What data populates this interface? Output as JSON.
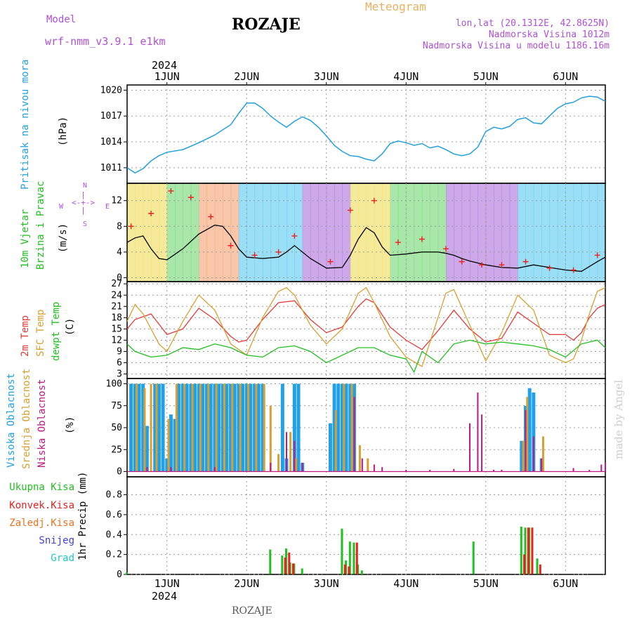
{
  "header": {
    "model_label": "Model",
    "model_name": "wrf-nmm_v3.9.1 e1km",
    "station": "ROZAJE",
    "title": "Meteogram",
    "lonlat": "lon,lat (20.1312E, 42.8625N)",
    "elevation": "Nadmorska Visina 1012m",
    "model_elevation": "Nadmorska Visina u modelu 1186.16m",
    "year": "2024",
    "footer_station": "ROZAJE",
    "watermark": "made by Angel"
  },
  "colors": {
    "pressure": "#22a0e0",
    "wind_speed": "#000000",
    "gust": "#e82020",
    "temp2m": "#e83838",
    "sfc": "#d8a030",
    "dewpt": "#20c020",
    "high_cloud": "#20a0e8",
    "mid_cloud": "#d8a030",
    "low_cloud": "#c01880",
    "ukupna": "#20c020",
    "konvek": "#e82020",
    "zaledj": "#f07020",
    "snijeg": "#4040e0",
    "grad": "#20c8c8"
  },
  "chart_data": [
    {
      "type": "line",
      "panel": "pressure",
      "ylabel": [
        "Pritisak na nivou mora",
        "(hPa)"
      ],
      "ylim": [
        1009.2,
        1020.6
      ],
      "yticks": [
        1011,
        1014,
        1017,
        1020
      ],
      "xticks": [
        "1JUN",
        "2JUN",
        "3JUN",
        "4JUN",
        "5JUN",
        "6JUN"
      ],
      "x": [
        0.5,
        0.6,
        0.7,
        0.8,
        0.9,
        1.0,
        1.2,
        1.4,
        1.6,
        1.8,
        1.9,
        2.0,
        2.1,
        2.2,
        2.3,
        2.4,
        2.5,
        2.6,
        2.7,
        2.8,
        2.9,
        3.0,
        3.1,
        3.2,
        3.3,
        3.4,
        3.5,
        3.6,
        3.7,
        3.8,
        3.9,
        4.0,
        4.1,
        4.2,
        4.3,
        4.4,
        4.5,
        4.6,
        4.7,
        4.8,
        4.9,
        5.0,
        5.1,
        5.2,
        5.3,
        5.4,
        5.5,
        5.6,
        5.7,
        5.8,
        5.9,
        6.0,
        6.1,
        6.2,
        6.3,
        6.4,
        6.5
      ],
      "values": [
        1011.0,
        1010.4,
        1010.9,
        1011.8,
        1012.4,
        1012.8,
        1013.1,
        1013.9,
        1014.8,
        1016.0,
        1017.3,
        1018.5,
        1018.5,
        1017.9,
        1017.0,
        1016.3,
        1015.7,
        1016.4,
        1016.9,
        1016.5,
        1015.7,
        1014.7,
        1013.6,
        1012.9,
        1012.4,
        1012.3,
        1012.0,
        1011.8,
        1012.6,
        1013.8,
        1014.1,
        1013.9,
        1013.6,
        1013.8,
        1013.3,
        1013.5,
        1013.1,
        1012.6,
        1012.4,
        1012.6,
        1013.4,
        1015.2,
        1015.7,
        1015.5,
        1015.8,
        1016.6,
        1016.8,
        1016.2,
        1016.1,
        1017.0,
        1017.9,
        1018.4,
        1018.6,
        1019.1,
        1019.3,
        1019.2,
        1018.7
      ]
    },
    {
      "type": "line",
      "panel": "wind",
      "ylabel": [
        "10m Vjetar",
        "Brzina i Pravac",
        "(m/s)"
      ],
      "compass": [
        "N",
        "W",
        "E",
        "S"
      ],
      "ylim": [
        -0.6,
        14.7
      ],
      "yticks": [
        0,
        4,
        8,
        12
      ],
      "series": [
        {
          "x": [
            0.5,
            0.6,
            0.7,
            0.8,
            0.9,
            1.0,
            1.2,
            1.4,
            1.6,
            1.7,
            1.8,
            1.9,
            2.0,
            2.2,
            2.4,
            2.5,
            2.6,
            2.8,
            3.0,
            3.2,
            3.3,
            3.4,
            3.5,
            3.6,
            3.7,
            3.8,
            3.9,
            4.0,
            4.2,
            4.4,
            4.5,
            4.6,
            4.7,
            4.8,
            5.0,
            5.2,
            5.4,
            5.6,
            5.8,
            6.0,
            6.2,
            6.4,
            6.5
          ],
          "values": [
            5.5,
            6.2,
            6.5,
            4.5,
            3.0,
            2.8,
            4.5,
            6.8,
            8.2,
            8.0,
            6.5,
            4.5,
            3.2,
            3.0,
            3.2,
            4.0,
            5.0,
            3.0,
            1.5,
            1.6,
            3.5,
            6.0,
            7.8,
            7.0,
            4.8,
            3.5,
            3.6,
            3.7,
            4.0,
            4.0,
            3.8,
            3.5,
            3.0,
            2.6,
            2.0,
            1.6,
            1.5,
            2.0,
            1.6,
            1.2,
            1.0,
            2.5,
            3.2
          ]
        },
        {
          "x": [
            0.55,
            0.8,
            1.05,
            1.3,
            1.55,
            1.8,
            2.1,
            2.4,
            2.6,
            3.05,
            3.3,
            3.6,
            3.9,
            4.2,
            4.5,
            4.7,
            4.95,
            5.2,
            5.5,
            5.8,
            6.1,
            6.4
          ],
          "values": [
            8.0,
            10.0,
            13.5,
            12.5,
            9.5,
            5.0,
            3.5,
            4.0,
            6.5,
            2.5,
            10.5,
            12.0,
            5.5,
            6.0,
            4.5,
            2.5,
            2.0,
            2.0,
            2.5,
            1.5,
            1.2,
            3.5
          ]
        }
      ]
    },
    {
      "type": "line",
      "panel": "temperature",
      "ylabel": [
        "2m Temp",
        "SFC Temp",
        "dewpt Temp",
        "(C)"
      ],
      "ylim": [
        1.8,
        27.6
      ],
      "yticks": [
        3,
        6,
        9,
        12,
        15,
        18,
        21,
        24,
        27
      ],
      "series": [
        {
          "name": "2m Temp",
          "x": [
            0.5,
            0.6,
            0.8,
            1.0,
            1.2,
            1.4,
            1.6,
            1.8,
            1.9,
            2.0,
            2.2,
            2.4,
            2.6,
            2.8,
            3.0,
            3.2,
            3.4,
            3.5,
            3.6,
            3.8,
            4.0,
            4.2,
            4.4,
            4.6,
            4.8,
            5.0,
            5.2,
            5.4,
            5.6,
            5.8,
            6.0,
            6.1,
            6.2,
            6.3,
            6.4,
            6.5
          ],
          "values": [
            15.0,
            17.5,
            19.0,
            13.5,
            15.0,
            20.5,
            17.5,
            13.0,
            11.5,
            12.0,
            17.5,
            22.0,
            22.5,
            17.5,
            14.0,
            15.5,
            21.0,
            23.0,
            22.0,
            15.5,
            12.0,
            9.5,
            14.5,
            20.0,
            15.0,
            11.5,
            12.5,
            19.5,
            16.5,
            13.5,
            13.5,
            12.0,
            14.0,
            18.0,
            20.5,
            21.5
          ]
        },
        {
          "name": "SFC Temp",
          "x": [
            0.5,
            0.6,
            0.7,
            0.8,
            0.9,
            1.0,
            1.2,
            1.4,
            1.6,
            1.8,
            2.0,
            2.2,
            2.4,
            2.5,
            2.6,
            2.8,
            3.0,
            3.2,
            3.4,
            3.5,
            3.6,
            3.8,
            4.0,
            4.2,
            4.4,
            4.5,
            4.6,
            4.8,
            5.0,
            5.2,
            5.4,
            5.6,
            5.8,
            6.0,
            6.1,
            6.2,
            6.3,
            6.4,
            6.5
          ],
          "values": [
            17.0,
            21.5,
            19.0,
            15.0,
            11.0,
            9.0,
            17.0,
            24.0,
            20.0,
            11.0,
            8.0,
            18.0,
            25.0,
            26.0,
            24.0,
            16.0,
            11.0,
            15.0,
            24.5,
            26.0,
            22.0,
            13.0,
            7.5,
            5.0,
            18.0,
            24.5,
            25.5,
            16.0,
            6.5,
            14.0,
            24.0,
            20.0,
            8.0,
            6.0,
            7.0,
            12.0,
            19.0,
            25.0,
            26.0
          ]
        },
        {
          "name": "dewpt Temp",
          "x": [
            0.5,
            0.6,
            0.8,
            1.0,
            1.2,
            1.4,
            1.6,
            1.8,
            2.0,
            2.2,
            2.4,
            2.6,
            2.8,
            3.0,
            3.2,
            3.4,
            3.6,
            3.8,
            4.0,
            4.1,
            4.2,
            4.4,
            4.6,
            4.8,
            5.0,
            5.2,
            5.4,
            5.6,
            5.8,
            6.0,
            6.2,
            6.4,
            6.5
          ],
          "values": [
            11.0,
            9.0,
            7.5,
            8.0,
            10.0,
            9.5,
            11.0,
            10.0,
            8.0,
            7.5,
            10.0,
            10.5,
            9.0,
            6.0,
            8.0,
            10.0,
            10.0,
            8.0,
            7.0,
            3.5,
            9.0,
            6.0,
            11.0,
            12.0,
            11.0,
            11.5,
            11.0,
            10.5,
            9.5,
            7.5,
            11.0,
            12.0,
            10.0
          ]
        }
      ]
    },
    {
      "type": "bar",
      "panel": "cloud",
      "ylabel": [
        "Visoka Oblacnost",
        "Srednja Oblacnost",
        "Niska Oblacnost",
        "(%)"
      ],
      "ylim": [
        -6,
        106
      ],
      "yticks": [
        0,
        25,
        50,
        75,
        100
      ],
      "series": [
        {
          "name": "Visoka Oblacnost",
          "x": [
            0.55,
            0.6,
            0.65,
            0.7,
            0.75,
            0.85,
            0.9,
            0.95,
            1.0,
            1.05,
            1.1,
            1.15,
            1.2,
            1.25,
            1.3,
            1.35,
            1.4,
            1.45,
            1.5,
            1.55,
            1.6,
            1.65,
            1.7,
            1.75,
            1.8,
            1.85,
            1.9,
            1.95,
            2.0,
            2.05,
            2.1,
            2.15,
            2.2,
            2.45,
            2.5,
            2.6,
            2.65,
            2.7,
            3.05,
            3.1,
            3.15,
            3.2,
            3.25,
            3.3,
            3.35,
            5.45,
            5.5,
            5.55,
            5.6,
            5.7
          ],
          "values": [
            100,
            100,
            100,
            100,
            52,
            100,
            100,
            100,
            15,
            65,
            60,
            100,
            100,
            100,
            100,
            100,
            100,
            100,
            100,
            100,
            100,
            100,
            100,
            100,
            100,
            100,
            100,
            100,
            100,
            100,
            100,
            100,
            100,
            100,
            15,
            100,
            100,
            10,
            55,
            100,
            100,
            100,
            100,
            100,
            100,
            35,
            75,
            95,
            90,
            15
          ]
        },
        {
          "name": "Srednja Oblacnost",
          "x": [
            0.62,
            0.72,
            0.8,
            0.87,
            1.02,
            1.12,
            1.22,
            1.32,
            1.42,
            1.52,
            1.62,
            1.72,
            1.82,
            1.92,
            2.02,
            2.12,
            2.22,
            2.3,
            2.4,
            2.55,
            2.62,
            3.12,
            3.22,
            3.32,
            3.42,
            3.52,
            5.47,
            5.52,
            5.72
          ],
          "values": [
            100,
            95,
            100,
            100,
            60,
            100,
            100,
            100,
            100,
            100,
            100,
            100,
            100,
            100,
            100,
            100,
            100,
            75,
            20,
            45,
            15,
            70,
            100,
            100,
            30,
            15,
            35,
            85,
            40
          ]
        },
        {
          "name": "Niska Oblacnost",
          "x": [
            0.75,
            1.05,
            1.6,
            2.3,
            2.5,
            2.6,
            2.7,
            3.35,
            3.45,
            3.6,
            3.7,
            4.0,
            4.3,
            4.6,
            4.8,
            4.9,
            4.95,
            5.1,
            5.2,
            5.5,
            5.6,
            5.7,
            6.1,
            6.3,
            6.45,
            6.5
          ],
          "values": [
            5,
            5,
            5,
            10,
            45,
            35,
            10,
            85,
            15,
            8,
            5,
            2,
            2,
            3,
            55,
            90,
            65,
            2,
            2,
            70,
            40,
            15,
            4,
            2,
            8,
            10
          ]
        }
      ]
    },
    {
      "type": "bar",
      "panel": "precip",
      "ylabel": [
        "1hr Precip (mm)"
      ],
      "legend": [
        "Ukupna Kisa",
        "Konvek.Kisa",
        "Zaledj.Kisa",
        "Snijeg",
        "Grad"
      ],
      "ylim": [
        0,
        0.98
      ],
      "yticks": [
        0,
        0.2,
        0.4,
        0.6,
        0.8
      ],
      "series": [
        {
          "name": "Ukupna Kisa",
          "x": [
            0.5,
            2.3,
            2.45,
            2.5,
            2.55,
            2.6,
            2.7,
            3.2,
            3.25,
            3.3,
            3.35,
            3.4,
            3.45,
            4.85,
            5.45,
            5.5,
            5.55,
            5.65
          ],
          "values": [
            0.02,
            0.25,
            0.19,
            0.26,
            0.12,
            0.11,
            0.06,
            0.46,
            0.14,
            0.33,
            0.32,
            0.1,
            0.04,
            0.33,
            0.48,
            0.47,
            0.47,
            0.16
          ]
        },
        {
          "name": "Konvek.Kisa",
          "x": [
            2.47,
            2.52,
            2.57,
            3.22,
            3.27,
            3.37,
            5.47,
            5.52,
            5.57,
            5.67
          ],
          "values": [
            0.17,
            0.22,
            0.11,
            0.1,
            0.08,
            0.32,
            0.2,
            0.47,
            0.47,
            0.1
          ]
        }
      ],
      "xticks": [
        "1JUN",
        "2JUN",
        "3JUN",
        "4JUN",
        "5JUN",
        "6JUN"
      ]
    }
  ]
}
